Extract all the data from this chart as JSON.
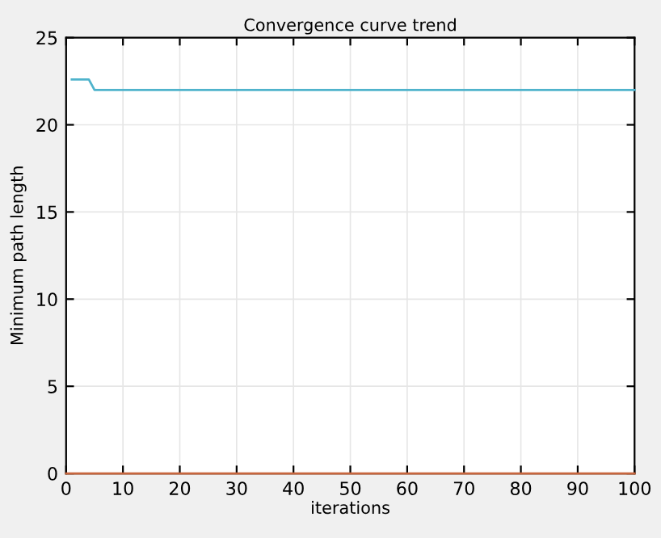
{
  "chart_data": {
    "type": "line",
    "title": "Convergence curve trend",
    "xlabel": "iterations",
    "ylabel": "Minimum path length",
    "series": [
      {
        "color": "#4fb3cc",
        "x": [
          1,
          4,
          5,
          100
        ],
        "values": [
          22.6,
          22.6,
          22.0,
          22.0
        ]
      },
      {
        "color": "#c8663e",
        "x": [
          0,
          100
        ],
        "values": [
          0,
          0
        ]
      }
    ],
    "xlim": [
      0,
      100
    ],
    "xticks": [
      0,
      10,
      20,
      30,
      40,
      50,
      60,
      70,
      80,
      90,
      100
    ],
    "ylim": [
      0,
      25
    ],
    "yticks": [
      0,
      5,
      10,
      15,
      20,
      25
    ],
    "grid": true,
    "legend": false,
    "marker": "none",
    "line_style": "solid"
  }
}
